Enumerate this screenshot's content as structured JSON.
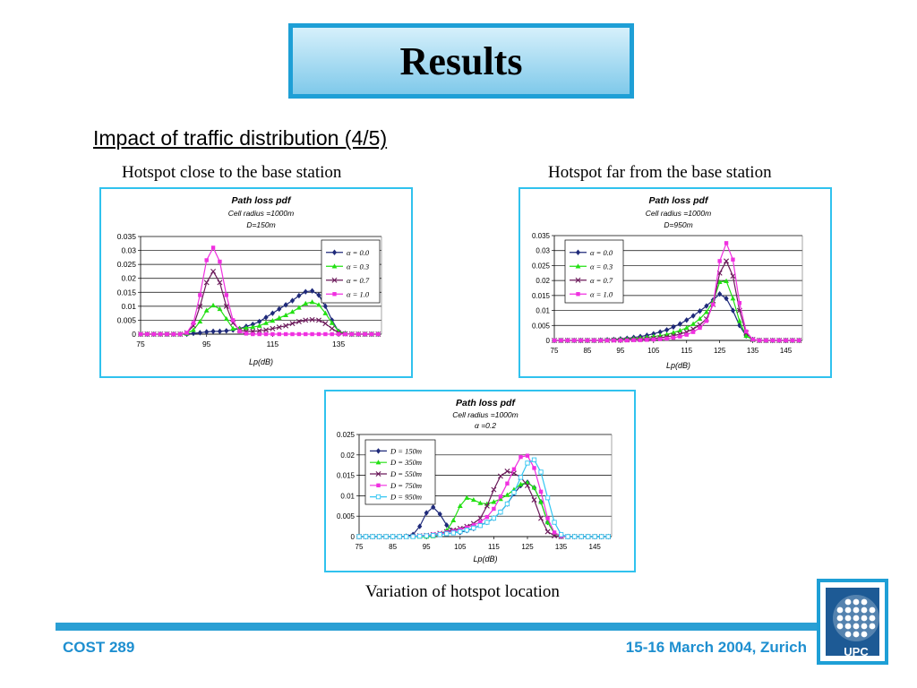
{
  "slide": {
    "title": "Results",
    "subtitle": "Impact of traffic distribution (4/5)",
    "caption_left": "Hotspot close to the base station",
    "caption_right": "Hotspot far from the base station",
    "caption_bottom": "Variation of hotspot  location"
  },
  "footer": {
    "left": "COST 289",
    "right": "15-16 March 2004, Zurich",
    "accent_color": "#1e8fd0"
  },
  "logo": {
    "text": "UPC",
    "color": "#1d5a95"
  },
  "chart_data": [
    {
      "type": "line",
      "title": "Path loss pdf",
      "subtitle_lines": [
        "Cell radius =1000m",
        "D=150m"
      ],
      "xlabel": "Lp(dB)",
      "ylabel": "",
      "xlim": [
        75,
        148
      ],
      "ylim": [
        0,
        0.035
      ],
      "xticks": [
        75,
        95,
        115,
        135
      ],
      "yticks": [
        0,
        0.005,
        0.01,
        0.015,
        0.02,
        0.025,
        0.03,
        0.035
      ],
      "ytick_labels": [
        "0",
        "0.005",
        "0.01",
        "0.015",
        "0.02",
        "0.025",
        "0.03",
        "0.035"
      ],
      "x": [
        75,
        77,
        79,
        81,
        83,
        85,
        87,
        89,
        91,
        93,
        95,
        97,
        99,
        101,
        103,
        105,
        107,
        109,
        111,
        113,
        115,
        117,
        119,
        121,
        123,
        125,
        127,
        129,
        131,
        133,
        135,
        137,
        139,
        141,
        143,
        145,
        147
      ],
      "legend_position": "top-right",
      "grid": "horizontal",
      "series": [
        {
          "name": "α = 0.0",
          "color": "#1f2a7a",
          "marker": "diamond",
          "values": [
            0,
            0,
            0,
            0,
            0,
            0,
            0,
            0,
            0.0003,
            0.0005,
            0.0008,
            0.001,
            0.001,
            0.0012,
            0.0015,
            0.002,
            0.0028,
            0.0035,
            0.0045,
            0.006,
            0.0075,
            0.009,
            0.0105,
            0.012,
            0.0138,
            0.0152,
            0.0155,
            0.014,
            0.01,
            0.005,
            0.001,
            0.0002,
            0,
            0,
            0,
            0,
            0
          ]
        },
        {
          "name": "α = 0.3",
          "color": "#22e012",
          "marker": "triangle",
          "values": [
            0,
            0,
            0,
            0,
            0,
            0,
            0,
            0.0002,
            0.0015,
            0.0045,
            0.0085,
            0.0103,
            0.009,
            0.0055,
            0.002,
            0.002,
            0.0022,
            0.0025,
            0.003,
            0.004,
            0.0048,
            0.0058,
            0.0068,
            0.008,
            0.0095,
            0.011,
            0.0115,
            0.0105,
            0.0075,
            0.004,
            0.001,
            0.0002,
            0,
            0,
            0,
            0,
            0
          ]
        },
        {
          "name": "α = 0.7",
          "color": "#6b1a5a",
          "marker": "x",
          "values": [
            0,
            0,
            0,
            0,
            0,
            0,
            0,
            0.0005,
            0.003,
            0.01,
            0.0185,
            0.0225,
            0.0185,
            0.01,
            0.004,
            0.0015,
            0.001,
            0.001,
            0.0012,
            0.0015,
            0.002,
            0.0025,
            0.003,
            0.0038,
            0.0045,
            0.005,
            0.0052,
            0.005,
            0.0038,
            0.002,
            0.0005,
            0.0001,
            0,
            0,
            0,
            0,
            0
          ]
        },
        {
          "name": "α = 1.0",
          "color": "#f030e0",
          "marker": "square",
          "values": [
            0,
            0,
            0,
            0,
            0,
            0,
            0,
            0.0005,
            0.004,
            0.014,
            0.0265,
            0.031,
            0.026,
            0.014,
            0.005,
            0.001,
            0.0002,
            0,
            0,
            0,
            0,
            0,
            0,
            0,
            0,
            0,
            0,
            0,
            0,
            0,
            0,
            0,
            0,
            0,
            0,
            0,
            0
          ]
        }
      ]
    },
    {
      "type": "line",
      "title": "Path loss pdf",
      "subtitle_lines": [
        "Cell radius =1000m",
        "D=950m"
      ],
      "xlabel": "Lp(dB)",
      "ylabel": "",
      "xlim": [
        75,
        150
      ],
      "ylim": [
        0,
        0.035
      ],
      "xticks": [
        75,
        85,
        95,
        105,
        115,
        125,
        135,
        145
      ],
      "yticks": [
        0,
        0.005,
        0.01,
        0.015,
        0.02,
        0.025,
        0.03,
        0.035
      ],
      "ytick_labels": [
        "0",
        "0.005",
        "0.01",
        "0.015",
        "0.02",
        "0.025",
        "0.03",
        "0.035"
      ],
      "x": [
        75,
        77,
        79,
        81,
        83,
        85,
        87,
        89,
        91,
        93,
        95,
        97,
        99,
        101,
        103,
        105,
        107,
        109,
        111,
        113,
        115,
        117,
        119,
        121,
        123,
        125,
        127,
        129,
        131,
        133,
        135,
        137,
        139,
        141,
        143,
        145,
        147,
        149
      ],
      "legend_position": "top-left",
      "grid": "horizontal",
      "series": [
        {
          "name": "α = 0.0",
          "color": "#1f2a7a",
          "marker": "diamond",
          "values": [
            0,
            0,
            0,
            0,
            0,
            0,
            0,
            0.0001,
            0.0002,
            0.0003,
            0.0005,
            0.0007,
            0.001,
            0.0013,
            0.0017,
            0.0022,
            0.0028,
            0.0035,
            0.0045,
            0.0055,
            0.0068,
            0.0082,
            0.0098,
            0.0115,
            0.0135,
            0.0155,
            0.014,
            0.01,
            0.005,
            0.0015,
            0.0003,
            0,
            0,
            0,
            0,
            0,
            0,
            0
          ]
        },
        {
          "name": "α = 0.3",
          "color": "#22e012",
          "marker": "triangle",
          "values": [
            0,
            0,
            0,
            0,
            0,
            0,
            0,
            0,
            0.0001,
            0.0002,
            0.0003,
            0.0004,
            0.0006,
            0.0008,
            0.001,
            0.0013,
            0.0016,
            0.002,
            0.0026,
            0.0033,
            0.0042,
            0.0055,
            0.0072,
            0.0095,
            0.013,
            0.0195,
            0.0198,
            0.014,
            0.0065,
            0.0015,
            0.0002,
            0,
            0,
            0,
            0,
            0,
            0,
            0
          ]
        },
        {
          "name": "α = 0.7",
          "color": "#6b1a5a",
          "marker": "x",
          "values": [
            0,
            0,
            0,
            0,
            0,
            0,
            0,
            0,
            0,
            0.0001,
            0.0001,
            0.0002,
            0.0003,
            0.0004,
            0.0005,
            0.0007,
            0.0009,
            0.0012,
            0.0016,
            0.0021,
            0.0028,
            0.0038,
            0.0052,
            0.0072,
            0.012,
            0.0225,
            0.0265,
            0.0215,
            0.01,
            0.0025,
            0.0003,
            0,
            0,
            0,
            0,
            0,
            0,
            0
          ]
        },
        {
          "name": "α = 1.0",
          "color": "#f030e0",
          "marker": "square",
          "values": [
            0,
            0,
            0,
            0,
            0,
            0,
            0,
            0,
            0,
            0,
            0,
            0,
            0.0001,
            0.0001,
            0.0002,
            0.0003,
            0.0004,
            0.0006,
            0.0009,
            0.0013,
            0.0019,
            0.0028,
            0.0042,
            0.0065,
            0.012,
            0.0265,
            0.0325,
            0.027,
            0.0125,
            0.003,
            0.0003,
            0,
            0,
            0,
            0,
            0,
            0,
            0
          ]
        }
      ]
    },
    {
      "type": "line",
      "title": "Path loss pdf",
      "subtitle_lines": [
        "Cell radius =1000m",
        "α =0.2"
      ],
      "xlabel": "Lp(dB)",
      "ylabel": "",
      "xlim": [
        75,
        150
      ],
      "ylim": [
        0,
        0.025
      ],
      "xticks": [
        75,
        85,
        95,
        105,
        115,
        125,
        135,
        145
      ],
      "yticks": [
        0,
        0.005,
        0.01,
        0.015,
        0.02,
        0.025
      ],
      "ytick_labels": [
        "0",
        "0.005",
        "0.01",
        "0.015",
        "0.02",
        "0.025"
      ],
      "x": [
        75,
        77,
        79,
        81,
        83,
        85,
        87,
        89,
        91,
        93,
        95,
        97,
        99,
        101,
        103,
        105,
        107,
        109,
        111,
        113,
        115,
        117,
        119,
        121,
        123,
        125,
        127,
        129,
        131,
        133,
        135,
        137,
        139,
        141,
        143,
        145,
        147,
        149
      ],
      "legend_position": "top-left",
      "grid": "horizontal",
      "series": [
        {
          "name": "D = 150m",
          "color": "#1f2a7a",
          "marker": "diamond",
          "values": [
            0,
            0,
            0,
            0,
            0,
            0,
            0,
            0.0001,
            0.0005,
            0.0025,
            0.0058,
            0.0072,
            0.0055,
            0.0028,
            0.0012,
            0.001,
            0.0015,
            0.002,
            0.0028,
            0.0035,
            0.0045,
            0.006,
            0.008,
            0.0105,
            0.0125,
            0.0133,
            0.012,
            0.0085,
            0.0035,
            0.0008,
            0.0001,
            0,
            0,
            0,
            0,
            0,
            0,
            0
          ]
        },
        {
          "name": "D = 350m",
          "color": "#22e012",
          "marker": "triangle",
          "values": [
            0,
            0,
            0,
            0,
            0,
            0,
            0,
            0,
            0,
            0,
            0,
            0.0001,
            0.0005,
            0.0015,
            0.004,
            0.0075,
            0.0095,
            0.009,
            0.0082,
            0.008,
            0.0085,
            0.0092,
            0.0102,
            0.0115,
            0.0128,
            0.0132,
            0.012,
            0.0085,
            0.0035,
            0.0008,
            0.0001,
            0,
            0,
            0,
            0,
            0,
            0,
            0
          ]
        },
        {
          "name": "D = 550m",
          "color": "#6b1a5a",
          "marker": "x",
          "values": [
            0,
            0,
            0,
            0,
            0,
            0,
            0,
            0,
            0.0001,
            0.0002,
            0.0003,
            0.0005,
            0.0008,
            0.0012,
            0.0016,
            0.002,
            0.0025,
            0.0032,
            0.0045,
            0.0075,
            0.0115,
            0.0148,
            0.016,
            0.0155,
            0.0145,
            0.0125,
            0.009,
            0.0045,
            0.0012,
            0.0002,
            0,
            0,
            0,
            0,
            0,
            0,
            0,
            0
          ]
        },
        {
          "name": "D = 750m",
          "color": "#f030e0",
          "marker": "square",
          "values": [
            0,
            0,
            0,
            0,
            0,
            0,
            0,
            0,
            0.0001,
            0.0002,
            0.0003,
            0.0005,
            0.0007,
            0.001,
            0.0013,
            0.0017,
            0.0022,
            0.0028,
            0.0036,
            0.0048,
            0.0068,
            0.0098,
            0.013,
            0.0165,
            0.0195,
            0.0198,
            0.0168,
            0.011,
            0.0045,
            0.001,
            0.0001,
            0,
            0,
            0,
            0,
            0,
            0,
            0
          ]
        },
        {
          "name": "D = 950m",
          "color": "#33c6f2",
          "marker": "square-open",
          "values": [
            0,
            0,
            0,
            0,
            0,
            0,
            0,
            0,
            0,
            0.0001,
            0.0002,
            0.0003,
            0.0005,
            0.0007,
            0.0009,
            0.0012,
            0.0016,
            0.0021,
            0.0027,
            0.0035,
            0.0045,
            0.006,
            0.008,
            0.0108,
            0.0145,
            0.018,
            0.0188,
            0.0158,
            0.0095,
            0.0035,
            0.0005,
            0,
            0,
            0,
            0,
            0,
            0,
            0
          ]
        }
      ]
    }
  ]
}
